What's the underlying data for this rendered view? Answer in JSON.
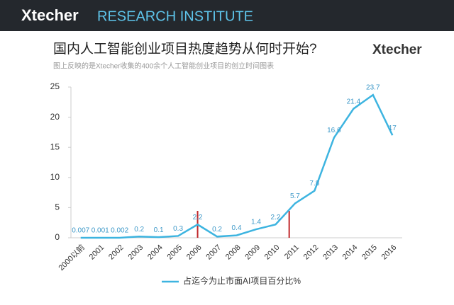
{
  "header": {
    "brand": "Xtecher",
    "subtitle": "RESEARCH INSTITUTE"
  },
  "logo": "Xtecher",
  "chart_data": {
    "type": "line",
    "title": "国内人工智能创业项目热度趋势从何时开始?",
    "subtitle": "图上反映的是Xtecher收集的400余个人工智能创业项目的创立时间图表",
    "categories": [
      "2000以前",
      "2001",
      "2002",
      "2003",
      "2004",
      "2005",
      "2006",
      "2007",
      "2008",
      "2009",
      "2010",
      "2011",
      "2012",
      "2013",
      "2014",
      "2015",
      "2016"
    ],
    "series": [
      {
        "name": "占迄今为止市面AI项目百分比%",
        "color": "#3db4e0",
        "values": [
          0.007,
          0.001,
          0.002,
          0.2,
          0.1,
          0.3,
          2.2,
          0.2,
          0.4,
          1.4,
          2.2,
          5.7,
          7.8,
          16.6,
          21.4,
          23.7,
          17
        ]
      }
    ],
    "ylim": [
      0,
      25
    ],
    "yticks": [
      0,
      5,
      10,
      15,
      20,
      25
    ],
    "legend": "bottom"
  }
}
